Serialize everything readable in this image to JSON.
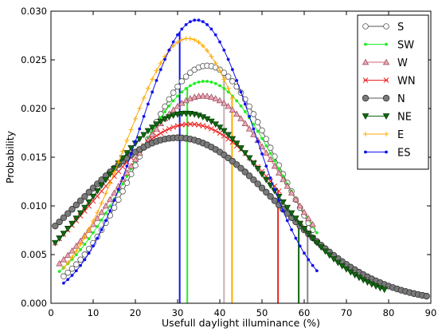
{
  "chart_data": {
    "type": "line",
    "title": "",
    "xlabel": "Usefull daylight illuminance (%)",
    "ylabel": "Probability",
    "xlim": [
      0,
      90
    ],
    "ylim": [
      0,
      0.03
    ],
    "xticks": [
      "0",
      "10",
      "20",
      "30",
      "40",
      "50",
      "60",
      "70",
      "80",
      "90"
    ],
    "yticks": [
      "0.000",
      "0.005",
      "0.010",
      "0.015",
      "0.020",
      "0.025",
      "0.030"
    ],
    "grid": false,
    "legend_position": "top-right",
    "series": [
      {
        "name": "S",
        "color": "#555555",
        "marker": "open-circle",
        "mean": 37.0,
        "sd": 16.3,
        "x_range": [
          3,
          62
        ],
        "vline_x": 41.0,
        "vline_color": "#aaaaaa",
        "peak": 0.0244
      },
      {
        "name": "SW",
        "color": "#22ee22",
        "marker": "point",
        "mean": 36.5,
        "sd": 17.5,
        "x_range": [
          2,
          63
        ],
        "vline_x": 32.3,
        "vline_color": "#22ee22",
        "peak": 0.0228
      },
      {
        "name": "W",
        "color": "#cc6677",
        "marker": "triangle",
        "mean": 36.0,
        "sd": 18.7,
        "x_range": [
          2,
          62
        ],
        "vline_x": 41.0,
        "vline_color": "#ccbbbb",
        "peak": 0.0213
      },
      {
        "name": "WN",
        "color": "#ee2222",
        "marker": "x",
        "mean": 33.0,
        "sd": 21.7,
        "x_range": [
          1,
          54
        ],
        "vline_x": 53.8,
        "vline_color": "#ee2222",
        "peak": 0.0184
      },
      {
        "name": "N",
        "color": "#555555",
        "marker": "filled-circle",
        "mean": 30.0,
        "sd": 23.5,
        "x_range": [
          1,
          89
        ],
        "vline_x": 60.8,
        "vline_color": "#888888",
        "peak": 0.017
      },
      {
        "name": "NE",
        "color": "#116611",
        "marker": "triangle-down",
        "mean": 32.0,
        "sd": 20.5,
        "x_range": [
          1,
          79
        ],
        "vline_x": 58.7,
        "vline_color": "#116611",
        "peak": 0.0195
      },
      {
        "name": "E",
        "color": "#ffaa00",
        "marker": "plus",
        "mean": 32.5,
        "sd": 14.7,
        "x_range": [
          3,
          43
        ],
        "vline_x": 42.9,
        "vline_color": "#ffaa00",
        "peak": 0.0272
      },
      {
        "name": "ES",
        "color": "#1111ee",
        "marker": "point",
        "mean": 34.5,
        "sd": 13.7,
        "x_range": [
          3,
          63
        ],
        "vline_x": 30.5,
        "vline_color": "#1111ee",
        "peak": 0.0291
      }
    ]
  }
}
